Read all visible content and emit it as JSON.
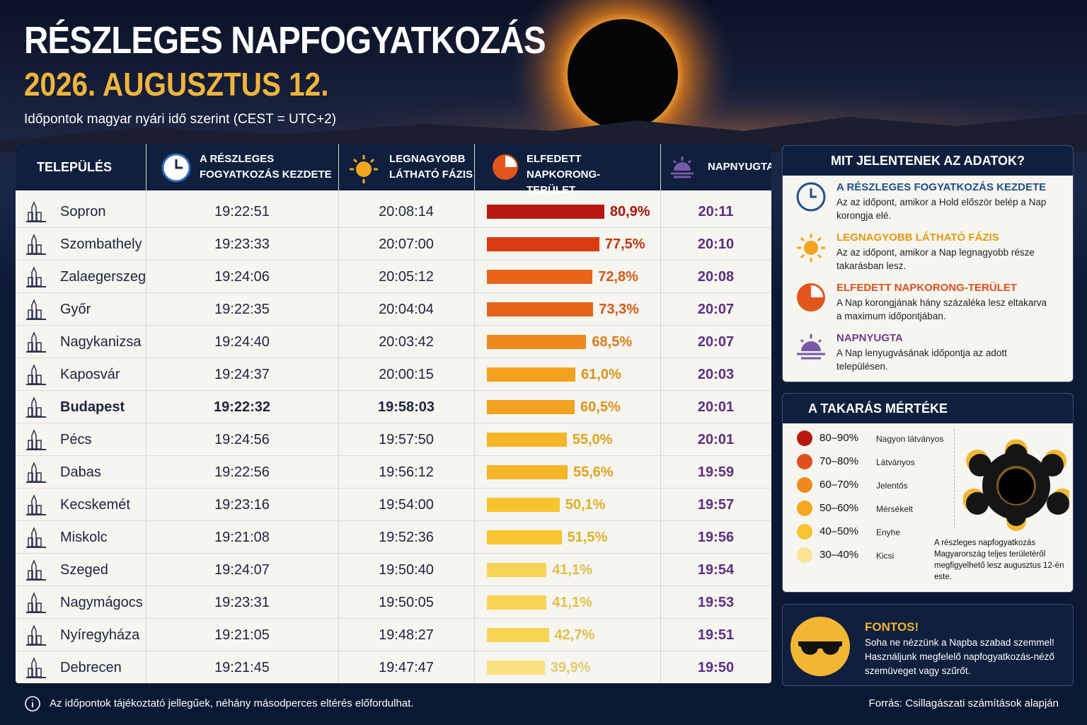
{
  "header": {
    "title": "RÉSZLEGES NAPFOGYATKOZÁS",
    "date": "2026. AUGUSZTUS 12.",
    "subtitle": "Időpontok magyar nyári idő szerint (CEST = UTC+2)"
  },
  "table": {
    "columns": [
      "TELEPÜLÉS",
      "A RÉSZLEGES FOGYATKOZÁS KEZDETE",
      "LEGNAGYOBB LÁTHATÓ FÁZIS",
      "ELFEDETT NAPKORONG-TERÜLET",
      "NAPNYUGTA"
    ],
    "rows": [
      {
        "city": "Sopron",
        "start": "19:22:51",
        "max": "20:08:14",
        "coverage": 80.9,
        "coverage_label": "80,9%",
        "sunset": "20:11",
        "color": "#b8180f"
      },
      {
        "city": "Szombathely",
        "start": "19:23:33",
        "max": "20:07:00",
        "coverage": 77.5,
        "coverage_label": "77,5%",
        "sunset": "20:10",
        "color": "#d83b12"
      },
      {
        "city": "Zalaegerszeg",
        "start": "19:24:06",
        "max": "20:05:12",
        "coverage": 72.8,
        "coverage_label": "72,8%",
        "sunset": "20:08",
        "color": "#e8641b"
      },
      {
        "city": "Győr",
        "start": "19:22:35",
        "max": "20:04:04",
        "coverage": 73.3,
        "coverage_label": "73,3%",
        "sunset": "20:07",
        "color": "#e8641b"
      },
      {
        "city": "Nagykanizsa",
        "start": "19:24:40",
        "max": "20:03:42",
        "coverage": 68.5,
        "coverage_label": "68,5%",
        "sunset": "20:07",
        "color": "#ee8a1d"
      },
      {
        "city": "Kaposvár",
        "start": "19:24:37",
        "max": "20:00:15",
        "coverage": 61.0,
        "coverage_label": "61,0%",
        "sunset": "20:03",
        "color": "#f3a220"
      },
      {
        "city": "Budapest",
        "start": "19:22:32",
        "max": "19:58:03",
        "coverage": 60.5,
        "coverage_label": "60,5%",
        "sunset": "20:01",
        "color": "#f3a220",
        "highlight": true
      },
      {
        "city": "Pécs",
        "start": "19:24:56",
        "max": "19:57:50",
        "coverage": 55.0,
        "coverage_label": "55,0%",
        "sunset": "20:01",
        "color": "#f5b526"
      },
      {
        "city": "Dabas",
        "start": "19:22:56",
        "max": "19:56:12",
        "coverage": 55.6,
        "coverage_label": "55,6%",
        "sunset": "19:59",
        "color": "#f5b526"
      },
      {
        "city": "Kecskemét",
        "start": "19:23:16",
        "max": "19:54:00",
        "coverage": 50.1,
        "coverage_label": "50,1%",
        "sunset": "19:57",
        "color": "#f6c42f"
      },
      {
        "city": "Miskolc",
        "start": "19:21:08",
        "max": "19:52:36",
        "coverage": 51.5,
        "coverage_label": "51,5%",
        "sunset": "19:56",
        "color": "#f6c42f"
      },
      {
        "city": "Szeged",
        "start": "19:24:07",
        "max": "19:50:40",
        "coverage": 41.1,
        "coverage_label": "41,1%",
        "sunset": "19:54",
        "color": "#f8d455"
      },
      {
        "city": "Nagymágocs",
        "start": "19:23:31",
        "max": "19:50:05",
        "coverage": 41.1,
        "coverage_label": "41,1%",
        "sunset": "19:53",
        "color": "#f8d455"
      },
      {
        "city": "Nyíregyháza",
        "start": "19:21:05",
        "max": "19:48:27",
        "coverage": 42.7,
        "coverage_label": "42,7%",
        "sunset": "19:51",
        "color": "#f8d455"
      },
      {
        "city": "Debrecen",
        "start": "19:21:45",
        "max": "19:47:47",
        "coverage": 39.9,
        "coverage_label": "39,9%",
        "sunset": "19:50",
        "color": "#fae17f"
      }
    ]
  },
  "explain": {
    "title": "MIT JELENTENEK AZ ADATOK?",
    "items": [
      {
        "heading": "A RÉSZLEGES FOGYATKOZÁS KEZDETE",
        "text": "Az az időpont, amikor a Hold először belép a Nap korongja elé.",
        "color": "#1f4e8c"
      },
      {
        "heading": "LEGNAGYOBB LÁTHATÓ FÁZIS",
        "text": "Az az időpont, amikor a Nap legnagyobb része takarásban lesz.",
        "color": "#e39a12"
      },
      {
        "heading": "ELFEDETT NAPKORONG-TERÜLET",
        "text": "A Nap korongjának hány százaléka lesz eltakarva a maximum időpontjában.",
        "color": "#d9531e"
      },
      {
        "heading": "NAPNYUGTA",
        "text": "A Nap lenyugvásának időpontja az adott településen.",
        "color": "#6b3f8e"
      }
    ]
  },
  "scale": {
    "title": "A TAKARÁS MÉRTÉKE",
    "items": [
      {
        "range": "80–90%",
        "text": "Nagyon látványos",
        "color": "#b8180f"
      },
      {
        "range": "70–80%",
        "text": "Látványos",
        "color": "#e0501a"
      },
      {
        "range": "60–70%",
        "text": "Jelentős",
        "color": "#ee8a1d"
      },
      {
        "range": "50–60%",
        "text": "Mérsékelt",
        "color": "#f3a820"
      },
      {
        "range": "40–50%",
        "text": "Enyhe",
        "color": "#f6c42f"
      },
      {
        "range": "30–40%",
        "text": "Kicsi",
        "color": "#fae590"
      }
    ],
    "note": "A részleges napfogyatkozás Magyarország teljes területéről megfigyelhető lesz augusztus 12-én este."
  },
  "warning": {
    "title": "FONTOS!",
    "text": "Soha ne nézzünk a Napba szabad szemmel! Használjunk megfelelő napfogyatkozás-néző szemüveget vagy szűrőt."
  },
  "footer": {
    "note": "Az időpontok tájékoztató jellegűek, néhány másodperces eltérés előfordulhat.",
    "source": "Forrás: Csillagászati számítások alapján"
  }
}
